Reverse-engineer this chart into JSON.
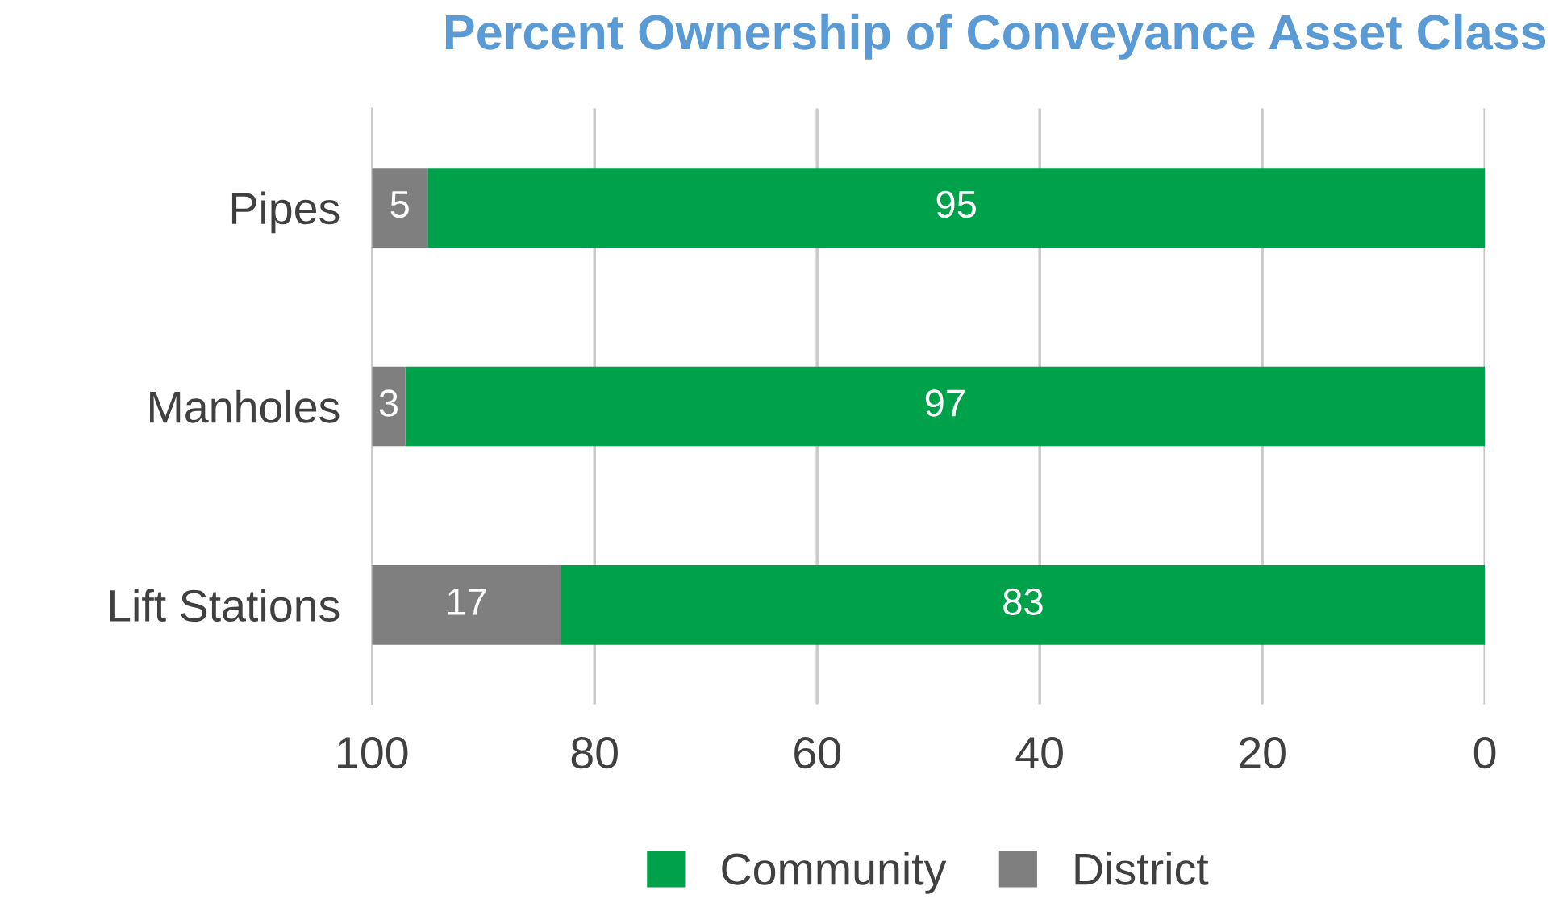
{
  "chart_data": {
    "type": "bar",
    "orientation": "horizontal",
    "stacked": true,
    "title": "Percent Ownership of Conveyance Asset Class",
    "categories": [
      "Pipes",
      "Manholes",
      "Lift Stations"
    ],
    "series": [
      {
        "name": "Community",
        "color": "#00a14b",
        "values": [
          95,
          97,
          83
        ]
      },
      {
        "name": "District",
        "color": "#7f7f7f",
        "values": [
          5,
          3,
          17
        ]
      }
    ],
    "xlim": [
      100,
      0
    ],
    "xticks": [
      100,
      80,
      60,
      40,
      20,
      0
    ],
    "grid": "x",
    "legend": "bottom",
    "data_labels": true
  }
}
